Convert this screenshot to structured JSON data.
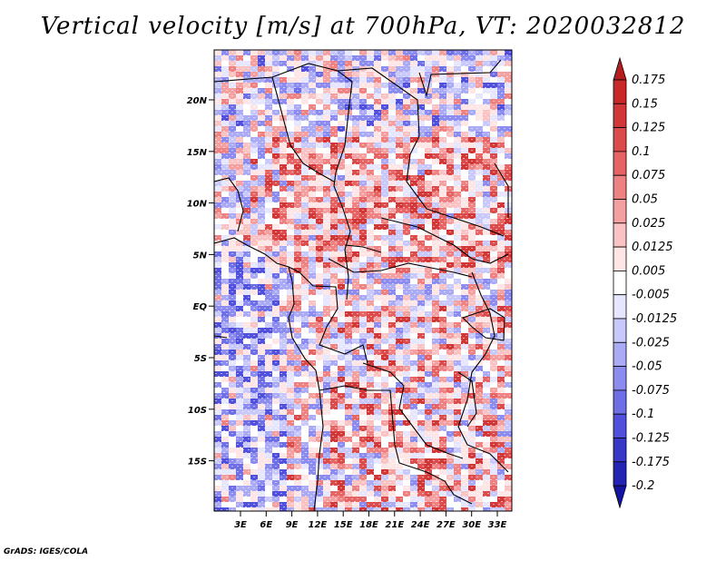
{
  "title": "Vertical velocity [m/s] at 700hPa, VT: 2020032812",
  "credit": "GrADS: IGES/COLA",
  "map": {
    "variable": "Vertical velocity",
    "units": "m/s",
    "level": "700hPa",
    "valid_time": "2020032812",
    "lat_labels": [
      "20N",
      "15N",
      "10N",
      "5N",
      "EQ",
      "5S",
      "10S",
      "15S"
    ],
    "lon_labels": [
      "3E",
      "6E",
      "9E",
      "12E",
      "15E",
      "18E",
      "21E",
      "24E",
      "27E",
      "30E",
      "33E"
    ]
  },
  "colorbar": {
    "labels": [
      "0.175",
      "0.15",
      "0.125",
      "0.1",
      "0.075",
      "0.05",
      "0.025",
      "0.0125",
      "0.005",
      "-0.005",
      "-0.0125",
      "-0.025",
      "-0.05",
      "-0.075",
      "-0.1",
      "-0.125",
      "-0.175",
      "-0.2"
    ],
    "colors_top_to_bottom": [
      "#b41e1e",
      "#c82828",
      "#d23737",
      "#dc4b4b",
      "#e66464",
      "#ee8282",
      "#f5a0a0",
      "#fac3c3",
      "#ffe6e6",
      "#ffffff",
      "#e6e6ff",
      "#c8c8fa",
      "#aaaaf5",
      "#8c8cf0",
      "#6e6ee6",
      "#5050dc",
      "#3737c8",
      "#2323b4",
      "#1414a0"
    ]
  },
  "colors": {
    "warm": "#dc4b4b",
    "cool": "#6e6ee6",
    "border": "#000000"
  }
}
